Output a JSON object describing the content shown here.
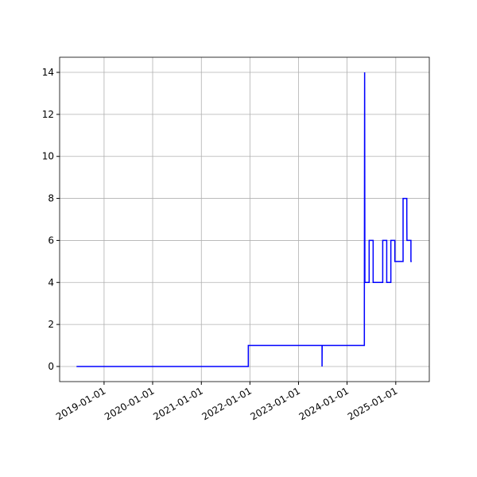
{
  "chart_data": {
    "type": "line",
    "x": [
      "2018-06-08",
      "2021-12-20",
      "2021-12-20",
      "2023-06-27",
      "2023-06-27",
      "2023-06-28",
      "2024-05-10",
      "2024-05-10",
      "2024-05-12",
      "2024-05-14",
      "2024-06-15",
      "2024-06-15",
      "2024-07-15",
      "2024-07-15",
      "2024-09-25",
      "2024-09-25",
      "2024-10-25",
      "2024-10-25",
      "2024-11-25",
      "2024-11-25",
      "2024-12-25",
      "2024-12-25",
      "2025-02-25",
      "2025-02-25",
      "2025-03-25",
      "2025-03-25",
      "2025-03-26",
      "2025-04-25",
      "2025-04-25",
      "2025-05-01"
    ],
    "y": [
      0,
      0,
      1,
      1,
      0,
      1,
      1,
      3,
      14,
      4,
      4,
      6,
      6,
      4,
      4,
      6,
      6,
      4,
      4,
      6,
      6,
      5,
      5,
      8,
      8,
      7,
      6,
      6,
      5,
      5
    ],
    "color": "#0000ff",
    "xlim": [
      "2018-02-01",
      "2025-09-10"
    ],
    "xticks": [
      "2019-01-01",
      "2020-01-01",
      "2021-01-01",
      "2022-01-01",
      "2023-01-01",
      "2024-01-01",
      "2025-01-01"
    ],
    "ylim": [
      -0.72,
      14.72
    ],
    "yticks": [
      0,
      2,
      4,
      6,
      8,
      10,
      12,
      14
    ],
    "grid": true
  }
}
